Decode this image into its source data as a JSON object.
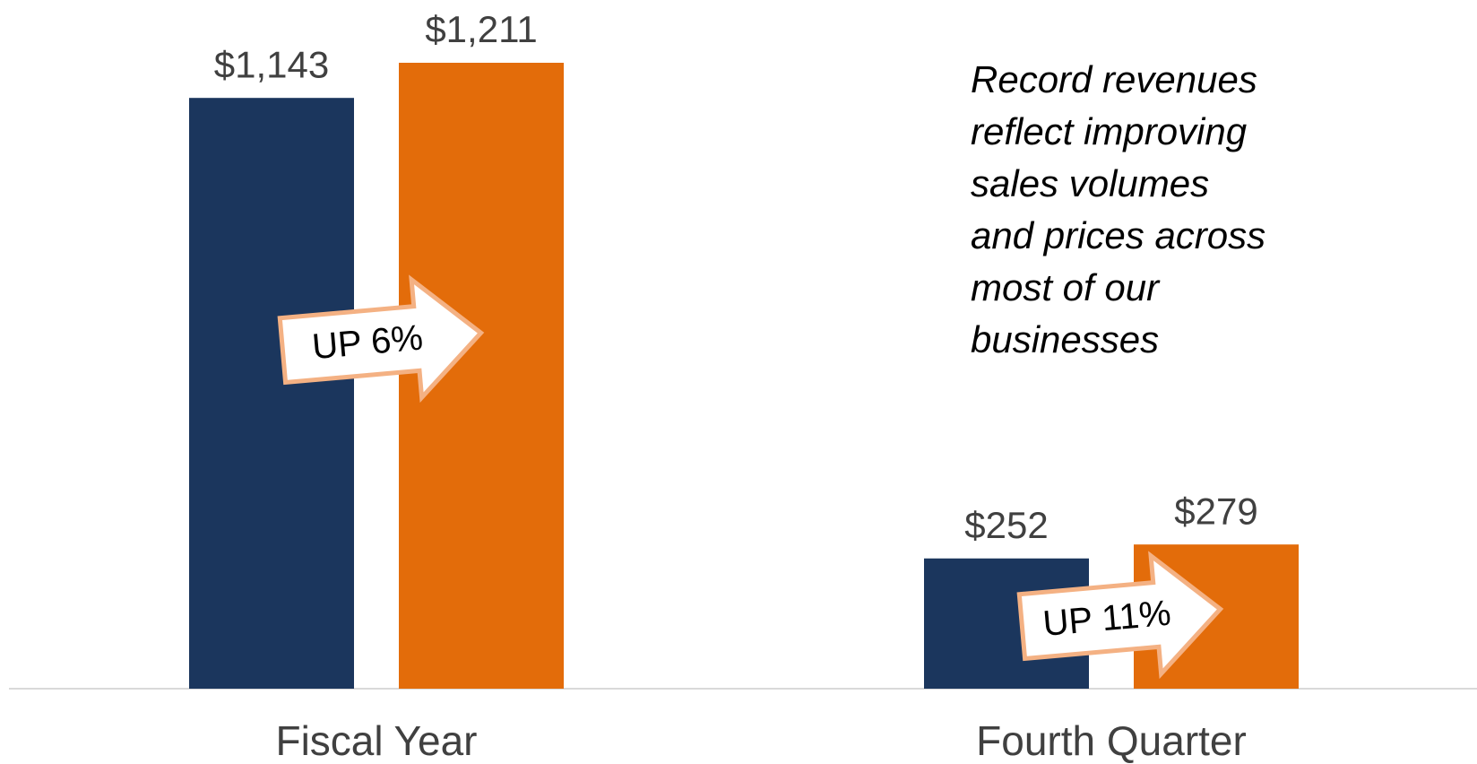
{
  "chart_data": {
    "type": "bar",
    "categories": [
      "Fiscal Year",
      "Fourth Quarter"
    ],
    "series": [
      {
        "color": "#1b365d",
        "values": [
          1143,
          252
        ],
        "value_labels": [
          "$1,143",
          "$252"
        ]
      },
      {
        "color": "#e36c0a",
        "values": [
          1211,
          279
        ],
        "value_labels": [
          "$1,211",
          "$279"
        ]
      }
    ],
    "annotations": [
      "UP 6%",
      "UP 11%"
    ],
    "note": [
      "Record revenues",
      "reflect improving",
      "sales volumes",
      "and prices across",
      "most of our",
      "businesses"
    ]
  }
}
